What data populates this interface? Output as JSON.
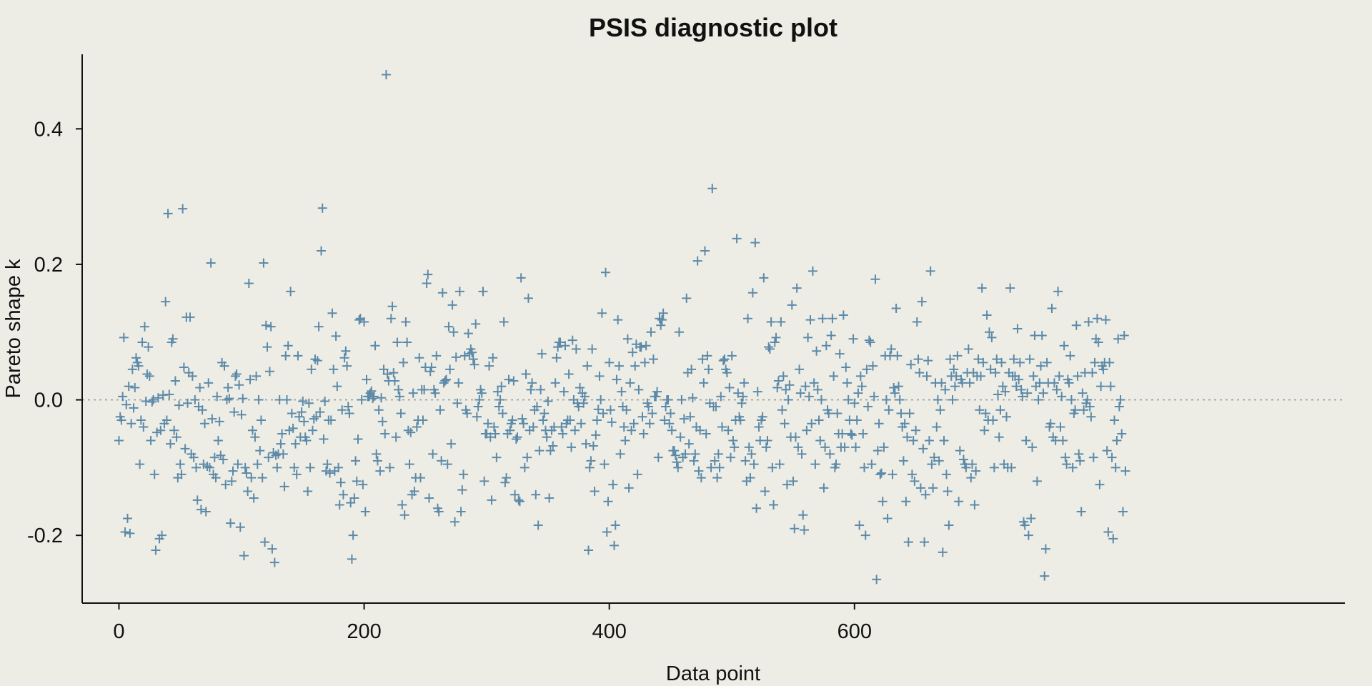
{
  "chart_data": {
    "type": "scatter",
    "title": "PSIS diagnostic plot",
    "xlabel": "Data point",
    "ylabel": "Pareto shape k",
    "xlim": [
      -30,
      1000
    ],
    "ylim": [
      -0.3,
      0.51
    ],
    "xticks": [
      0,
      200,
      400,
      600
    ],
    "yticks": [
      -0.2,
      0.0,
      0.2,
      0.4
    ],
    "ytick_labels": [
      "-0.2",
      "0.0",
      "0.2",
      "0.4"
    ],
    "reference_line": 0.0,
    "marker": "+",
    "grid": false,
    "legend": "none",
    "colors": {
      "marker": "#5d8aa8",
      "reference_line": "#9a9a9a",
      "background": "#edede6"
    },
    "y": [
      -0.06,
      -0.025,
      -0.03,
      0.005,
      0.092,
      -0.195,
      -0.007,
      -0.175,
      0.02,
      -0.197,
      -0.035,
      0.045,
      -0.012,
      0.018,
      0.062,
      0.055,
      0.05,
      -0.095,
      -0.03,
      0.085,
      -0.04,
      0.108,
      -0.002,
      0.038,
      0.078,
      0.035,
      -0.06,
      -0.003,
      0.0,
      -0.11,
      -0.222,
      -0.048,
      0.003,
      -0.205,
      -0.045,
      -0.2,
      0.007,
      -0.035,
      0.145,
      -0.03,
      0.275,
      0.008,
      -0.065,
      0.085,
      0.09,
      -0.045,
      0.028,
      -0.055,
      -0.115,
      -0.008,
      -0.095,
      -0.11,
      0.282,
      0.048,
      -0.072,
      0.122,
      -0.005,
      0.04,
      0.122,
      -0.08,
      0.035,
      -0.085,
      0.0,
      -0.1,
      -0.148,
      -0.01,
      0.018,
      -0.162,
      -0.015,
      -0.095,
      -0.035,
      -0.165,
      -0.098,
      0.025,
      -0.1,
      0.202,
      -0.028,
      -0.11,
      -0.085,
      -0.115,
      0.005,
      -0.06,
      -0.032,
      -0.082,
      0.055,
      -0.088,
      0.05,
      -0.125,
      0.0,
      0.018,
      0.002,
      -0.182,
      -0.12,
      -0.105,
      -0.018,
      0.035,
      0.038,
      -0.095,
      0.022,
      -0.188,
      -0.022,
      0.002,
      -0.23,
      -0.1,
      -0.108,
      -0.135,
      0.172,
      0.03,
      -0.115,
      -0.045,
      -0.145,
      -0.055,
      0.035,
      -0.095,
      0.0,
      -0.075,
      -0.03,
      -0.115,
      0.202,
      -0.21,
      0.11,
      0.078,
      -0.085,
      0.042,
      0.108,
      -0.22,
      -0.078,
      -0.24,
      -0.082,
      -0.1,
      -0.08,
      0.0,
      -0.065,
      -0.05,
      -0.08,
      -0.128,
      0.065,
      0.0,
      0.08,
      -0.045,
      0.16,
      -0.02,
      -0.042,
      -0.1,
      -0.065,
      -0.11,
      0.065,
      -0.025,
      -0.055,
      -0.018,
      -0.002,
      -0.032,
      -0.055,
      -0.06,
      -0.135,
      -0.005,
      -0.1,
      0.045,
      -0.045,
      -0.028,
      0.06,
      -0.025,
      0.058,
      0.108,
      -0.018,
      0.22,
      0.283,
      -0.058,
      -0.002,
      -0.105,
      -0.095,
      -0.03,
      -0.108,
      -0.03,
      0.128,
      0.045,
      -0.105,
      0.094,
      0.02,
      -0.1,
      -0.155,
      -0.122,
      -0.015,
      -0.14,
      0.062,
      0.072,
      0.05,
      -0.01,
      -0.02,
      -0.152,
      -0.235,
      -0.2,
      -0.145,
      -0.09,
      -0.12,
      -0.058,
      0.118,
      0.12,
      0.0,
      -0.125,
      0.115,
      -0.165,
      0.03,
      0.005,
      0.005,
      0.01,
      0.013,
      0.002,
      0.005,
      0.08,
      -0.08,
      -0.09,
      -0.015,
      -0.105,
      0.003,
      -0.032,
      0.045,
      -0.05,
      0.48,
      0.038,
      0.028,
      -0.1,
      0.12,
      0.138,
      0.04,
      0.028,
      -0.055,
      0.085,
      0.015,
      0.005,
      -0.02,
      -0.155,
      0.055,
      -0.17,
      0.115,
      0.085,
      -0.045,
      -0.095,
      -0.048,
      -0.14,
      0.01,
      -0.135,
      -0.115,
      -0.04,
      -0.03,
      0.062,
      -0.115,
      0.015,
      -0.03,
      0.015,
      0.048,
      0.172,
      0.185,
      -0.145,
      0.042,
      0.048,
      -0.08,
      0.015,
      0.01,
      0.065,
      -0.16,
      -0.165,
      -0.015,
      -0.09,
      0.158,
      0.025,
      0.028,
      0.03,
      -0.095,
      0.108,
      0.045,
      -0.065,
      0.14,
      0.1,
      -0.18,
      0.063,
      -0.005,
      0.025,
      0.16,
      -0.165,
      -0.133,
      -0.11,
      0.065,
      -0.015,
      -0.02,
      0.098,
      0.068,
      0.075,
      0.07,
      0.06,
      0.052,
      0.112,
      -0.025,
      -0.01,
      0.0,
      0.015,
      0.01,
      0.16,
      -0.12,
      -0.05,
      -0.05,
      -0.035,
      0.05,
      -0.055,
      -0.148,
      0.062,
      -0.04,
      -0.05,
      -0.085,
      0.012,
      -0.01,
      0.0,
      0.02,
      -0.02,
      0.115,
      -0.122,
      -0.115,
      -0.05,
      0.03,
      -0.045,
      -0.035,
      -0.03,
      0.028,
      -0.14,
      -0.058,
      -0.055,
      -0.148,
      -0.15,
      0.18,
      -0.028,
      -0.035,
      -0.1,
      0.038,
      -0.085,
      0.15,
      -0.045,
      0.015,
      0.025,
      -0.04,
      -0.015,
      -0.14,
      -0.01,
      -0.185,
      -0.075,
      0.015,
      0.068,
      -0.03,
      -0.02,
      -0.045,
      -0.055,
      -0.002,
      -0.145,
      -0.075,
      -0.045,
      -0.068,
      -0.04,
      0.025,
      0.062,
      0.078,
      0.085,
      0.085,
      -0.04,
      -0.05,
      0.012,
      0.08,
      -0.035,
      -0.03,
      0.038,
      -0.03,
      -0.07,
      0.088,
      0.0,
      -0.045,
      0.075,
      -0.005,
      -0.01,
      0.018,
      -0.035,
      0.01,
      -0.005,
      0.005,
      -0.065,
      0.05,
      -0.222,
      -0.1,
      -0.09,
      0.075,
      -0.068,
      -0.135,
      -0.052,
      -0.03,
      -0.014,
      0.035,
      0.0,
      0.128,
      -0.02,
      -0.095,
      0.188,
      -0.195,
      -0.15,
      0.055,
      -0.015,
      -0.033,
      -0.125,
      -0.215,
      -0.185,
      0.03,
      0.118,
      0.05,
      -0.08,
      0.012,
      -0.01,
      -0.04,
      -0.06,
      -0.015,
      0.09,
      -0.13,
      0.025,
      -0.045,
      0.07,
      -0.035,
      0.05,
      0.082,
      -0.11,
      0.015,
      0.078,
      0.078,
      -0.025,
      -0.05,
      0.055,
      0.08,
      -0.005,
      -0.01,
      -0.035,
      0.1,
      -0.02,
      0.06,
      0.005,
      0.005,
      0.012,
      -0.085,
      0.12,
      0.11,
      0.118,
      0.128,
      -0.03,
      -0.01,
      0.0,
      0.0,
      -0.035,
      -0.02,
      -0.045,
      -0.075,
      -0.075,
      -0.082,
      -0.092,
      -0.1,
      0.1,
      -0.055,
      0.0,
      -0.085,
      -0.028,
      -0.08,
      0.15,
      0.04,
      -0.065,
      -0.025,
      0.045,
      0.003,
      -0.09,
      -0.08,
      -0.04,
      0.205,
      -0.105,
      -0.045,
      -0.115,
      0.06,
      0.025,
      0.22,
      -0.05,
      0.065,
      0.045,
      -0.005,
      -0.1,
      0.312,
      -0.01,
      -0.09,
      -0.01,
      -0.115,
      -0.08,
      -0.1,
      0.005,
      -0.04,
      0.058,
      0.06,
      0.045,
      0.04,
      -0.045,
      0.018,
      -0.085,
      0.065,
      -0.06,
      -0.07,
      -0.03,
      0.238,
      0.01,
      -0.025,
      -0.03,
      -0.005,
      0.005,
      0.025,
      -0.09,
      -0.12,
      0.12,
      -0.07,
      -0.115,
      -0.08,
      0.158,
      -0.095,
      0.232,
      -0.16,
      0.012,
      -0.04,
      -0.06,
      -0.03,
      -0.025,
      0.18,
      -0.135,
      -0.07,
      -0.06,
      0.078,
      0.075,
      0.115,
      -0.1,
      -0.155,
      0.085,
      0.092,
      0.018,
      0.028,
      -0.095,
      0.115,
      -0.015,
      0.035,
      -0.035,
      0.015,
      -0.125,
      0.0,
      0.022,
      -0.055,
      0.14,
      -0.12,
      -0.19,
      -0.055,
      0.165,
      -0.07,
      0.045,
      0.01,
      -0.08,
      -0.17,
      -0.192,
      0.02,
      -0.045,
      0.092,
      0.005,
      0.118,
      -0.035,
      0.19,
      0.025,
      -0.095,
      0.072,
      0.015,
      -0.03,
      -0.06,
      0.0,
      0.12,
      -0.13,
      -0.07,
      0.08,
      -0.015,
      -0.02,
      -0.08,
      0.095,
      0.12,
      0.035,
      -0.1,
      -0.095,
      -0.02,
      -0.05,
      0.068,
      -0.07,
      -0.05,
      0.125,
      -0.07,
      0.048,
      0.025,
      0.0,
      -0.03,
      -0.05,
      -0.052,
      0.09,
      -0.005,
      -0.07,
      -0.03,
      0.01,
      -0.185,
      0.035,
      0.02,
      -0.05,
      -0.1,
      -0.2,
      0.045,
      -0.01,
      0.088,
      0.085,
      -0.095,
      0.05,
      0.005,
      0.178,
      -0.265,
      -0.075,
      -0.035,
      -0.11,
      -0.108,
      -0.15,
      -0.07,
      0.065,
      0.0,
      -0.175,
      -0.015,
      0.065,
      0.075,
      -0.11,
      0.018,
      0.01,
      0.135,
      0.065,
      0.02,
      0.0,
      -0.02,
      -0.04,
      -0.09,
      -0.035,
      -0.15,
      -0.055,
      -0.21,
      -0.02,
      0.052,
      -0.11,
      -0.06,
      -0.12,
      -0.045,
      0.115,
      0.06,
      0.04,
      -0.13,
      0.145,
      -0.072,
      -0.21,
      -0.14,
      0.035,
      0.058,
      -0.06,
      0.19,
      -0.095,
      -0.13,
      -0.085,
      0.025,
      -0.04,
      0.0,
      -0.09,
      -0.015,
      0.025,
      -0.225,
      -0.06,
      0.015,
      -0.11,
      -0.135,
      -0.185,
      0.06,
      0.035,
      0.0,
      0.045,
      0.02,
      0.035,
      0.065,
      -0.15,
      -0.075,
      0.03,
      0.025,
      -0.088,
      -0.095,
      -0.1,
      0.04,
      0.075,
      0.025,
      -0.115,
      -0.095,
      0.04,
      -0.155,
      -0.105,
      0.035,
      0.06,
      -0.015,
      0.035,
      0.165,
      0.055,
      -0.045,
      -0.02,
      0.125,
      -0.03,
      0.1,
      0.045,
      0.092,
      -0.03,
      -0.1,
      0.04,
      0.06,
      0.008,
      -0.055,
      -0.015,
      0.055,
      0.02,
      -0.095,
      0.012,
      -0.025,
      -0.1,
      0.04,
      0.165,
      -0.1,
      0.035,
      0.06,
      0.035,
      0.02,
      0.105,
      0.03,
      0.055,
      0.015,
      0.005,
      -0.18,
      -0.185,
      -0.06,
      0.01,
      -0.2,
      0.06,
      -0.175,
      -0.07,
      0.035,
      0.095,
      0.02,
      -0.12,
      0.0,
      0.025,
      0.05,
      0.095,
      0.01,
      -0.26,
      -0.22,
      0.055,
      0.025,
      -0.04,
      -0.035,
      0.135,
      -0.055,
      0.025,
      -0.06,
      0.015,
      0.16,
      0.035,
      -0.04,
      0.005,
      -0.06,
      0.08,
      -0.085,
      -0.095,
      0.03,
      0.025,
      0.065,
      0.0,
      -0.1,
      -0.02,
      -0.015,
      0.11,
      0.035,
      -0.08,
      -0.09,
      -0.165,
      0.01,
      -0.015,
      0.04,
      -0.005,
      0.0,
      0.115,
      -0.01,
      -0.025,
      0.04,
      -0.085,
      0.055,
      0.09,
      0.12,
      0.085,
      -0.125,
      0.02,
      0.05,
      0.045,
      0.055,
      0.118,
      -0.075,
      -0.195,
      0.055,
      0.02,
      -0.085,
      -0.205,
      -0.03,
      -0.1,
      -0.06,
      0.09,
      -0.01,
      0.0,
      -0.05,
      -0.165,
      0.095,
      -0.105
    ]
  }
}
